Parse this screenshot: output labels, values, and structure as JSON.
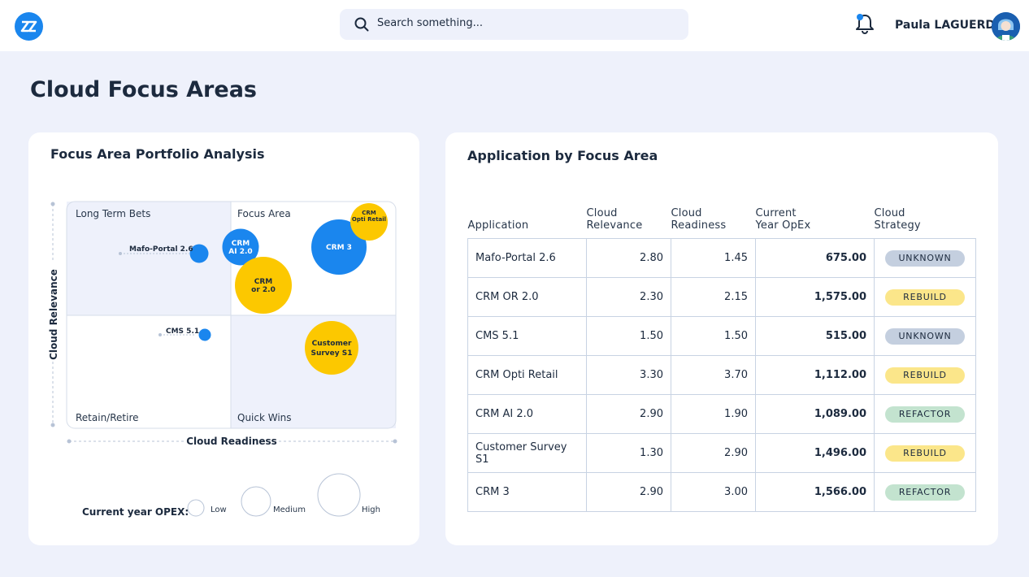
{
  "header": {
    "search_placeholder": "Search something...",
    "user_name": "Paula LAGUERDA",
    "colors": {
      "accent": "#1a86ee",
      "notification_dot": "#1a86ee"
    }
  },
  "page": {
    "title": "Cloud Focus Areas"
  },
  "portfolio": {
    "title": "Focus Area Portfolio Analysis",
    "y_axis_label": "Cloud Relevance",
    "x_axis_label": "Cloud Readiness",
    "quadrants": {
      "top_left": "Long Term Bets",
      "top_right": "Focus Area",
      "bottom_left": "Retain/Retire",
      "bottom_right": "Quick Wins"
    },
    "bubbles": [
      {
        "name": "Mafo-Portal 2.6",
        "label": "Mafo-Portal 2.6",
        "color": "#1a86ee"
      },
      {
        "name": "CRM AI 2.0",
        "label_lines": [
          "CRM",
          "AI 2.0"
        ],
        "color": "#1a86ee"
      },
      {
        "name": "CRM or 2.0",
        "label_lines": [
          "CRM",
          "or 2.0"
        ],
        "color": "#fcc800"
      },
      {
        "name": "CRM 3",
        "label_lines": [
          "CRM 3"
        ],
        "color": "#1a86ee"
      },
      {
        "name": "CRM Opti Retail",
        "label_lines": [
          "CRM",
          "Opti Retail"
        ],
        "color": "#fcc800"
      },
      {
        "name": "CMS 5.1",
        "label": "CMS 5.1",
        "color": "#1a86ee"
      },
      {
        "name": "Customer Survey S1",
        "label_lines": [
          "Customer",
          "Survey S1"
        ],
        "color": "#fcc800"
      }
    ],
    "legend": {
      "title": "Current year OPEX:",
      "low": "Low",
      "medium": "Medium",
      "high": "High"
    }
  },
  "applications": {
    "title": "Application by Focus Area",
    "columns": [
      [
        "Application"
      ],
      [
        "Cloud",
        "Relevance"
      ],
      [
        "Cloud",
        "Readiness"
      ],
      [
        "Current",
        "Year OpEx"
      ],
      [
        "Cloud",
        "Strategy"
      ]
    ],
    "rows": [
      {
        "application": "Mafo-Portal 2.6",
        "relevance": "2.80",
        "readiness": "1.45",
        "opex": "675.00",
        "strategy": "UNKNOWN"
      },
      {
        "application": "CRM OR 2.0",
        "relevance": "2.30",
        "readiness": "2.15",
        "opex": "1,575.00",
        "strategy": "REBUILD"
      },
      {
        "application": "CMS 5.1",
        "relevance": "1.50",
        "readiness": "1.50",
        "opex": "515.00",
        "strategy": "UNKNOWN"
      },
      {
        "application": "CRM Opti Retail",
        "relevance": "3.30",
        "readiness": "3.70",
        "opex": "1,112.00",
        "strategy": "REBUILD"
      },
      {
        "application": "CRM AI 2.0",
        "relevance": "2.90",
        "readiness": "1.90",
        "opex": "1,089.00",
        "strategy": "REFACTOR"
      },
      {
        "application": "Customer Survey S1",
        "relevance": "1.30",
        "readiness": "2.90",
        "opex": "1,496.00",
        "strategy": "REBUILD"
      },
      {
        "application": "CRM 3",
        "relevance": "2.90",
        "readiness": "3.00",
        "opex": "1,566.00",
        "strategy": "REFACTOR"
      }
    ],
    "strategy_colors": {
      "UNKNOWN": "#c4cfdf",
      "REBUILD": "#fbe68a",
      "REFACTOR": "#c3e3cf"
    }
  }
}
